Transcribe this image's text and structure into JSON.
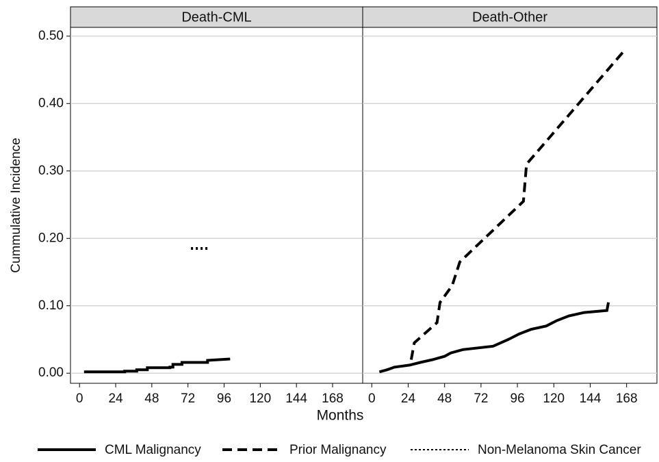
{
  "chart_data": [
    {
      "type": "line",
      "title": "Death-CML",
      "xlim": [
        -6,
        188
      ],
      "ylim": [
        -0.015,
        0.513
      ],
      "xticks": [
        0,
        24,
        48,
        72,
        96,
        120,
        144,
        168
      ],
      "yticks": [
        {
          "value": 0,
          "label": "0.00"
        },
        {
          "value": 0.1,
          "label": "0.10"
        },
        {
          "value": 0.2,
          "label": "0.20"
        },
        {
          "value": 0.3,
          "label": "0.30"
        },
        {
          "value": 0.4,
          "label": "0.40"
        },
        {
          "value": 0.5,
          "label": "0.50"
        }
      ],
      "grid": true,
      "series": [
        {
          "style": "solid",
          "color": "#000000",
          "x": [
            3,
            30,
            30,
            38,
            38,
            45,
            45,
            60,
            60,
            62,
            62,
            68,
            68,
            85,
            85,
            100
          ],
          "values": [
            0.002,
            0.002,
            0.003,
            0.003,
            0.005,
            0.005,
            0.008,
            0.008,
            0.009,
            0.009,
            0.013,
            0.013,
            0.016,
            0.016,
            0.019,
            0.021
          ]
        },
        {
          "style": "dotted",
          "color": "#000000",
          "x": [
            74,
            85
          ],
          "values": [
            0.185,
            0.185
          ]
        }
      ]
    },
    {
      "type": "line",
      "title": "Death-Other",
      "xlim": [
        -6,
        188
      ],
      "ylim": [
        -0.015,
        0.513
      ],
      "xticks": [
        0,
        24,
        48,
        72,
        96,
        120,
        144,
        168
      ],
      "grid": true,
      "series": [
        {
          "style": "solid",
          "color": "#000000",
          "x": [
            5,
            10,
            15,
            25,
            32,
            40,
            48,
            52,
            60,
            80,
            90,
            97,
            105,
            115,
            122,
            130,
            140,
            155,
            156
          ],
          "values": [
            0.002,
            0.005,
            0.009,
            0.012,
            0.016,
            0.02,
            0.025,
            0.03,
            0.035,
            0.04,
            0.05,
            0.058,
            0.065,
            0.07,
            0.078,
            0.085,
            0.09,
            0.093,
            0.105
          ]
        },
        {
          "style": "dashed",
          "color": "#000000",
          "x": [
            26,
            28,
            43,
            45,
            53,
            58,
            100,
            102,
            167
          ],
          "values": [
            0.02,
            0.045,
            0.075,
            0.105,
            0.13,
            0.165,
            0.255,
            0.31,
            0.48
          ]
        }
      ]
    }
  ],
  "ylabel": "Cummulative Incidence",
  "xlabel": "Months",
  "legend": [
    {
      "name": "CML Malignancy",
      "style": "solid"
    },
    {
      "name": "Prior Malignancy",
      "style": "dashed"
    },
    {
      "name": "Non-Melanoma Skin Cancer",
      "style": "dotted"
    }
  ]
}
